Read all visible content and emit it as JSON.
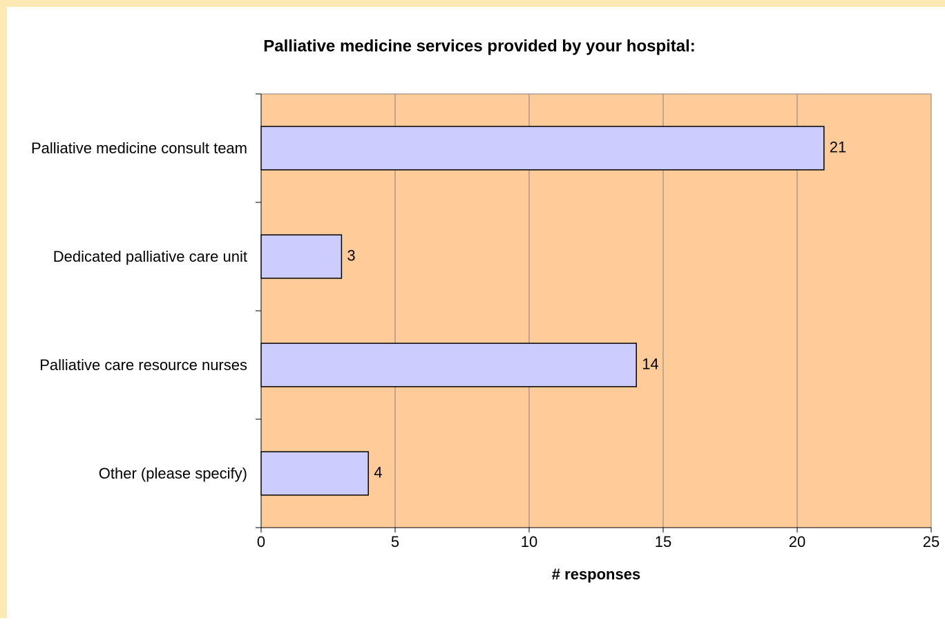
{
  "chart_data": {
    "type": "bar",
    "title": "Palliative medicine services provided by your hospital:",
    "x_label": "# responses",
    "categories": [
      "Palliative medicine consult team",
      "Dedicated palliative care unit",
      "Palliative care resource nurses",
      "Other (please specify)"
    ],
    "values": [
      21,
      3,
      14,
      4
    ],
    "color": "#ccccff",
    "xlim": [
      0,
      25
    ],
    "xticks": [
      0,
      5,
      10,
      15,
      20,
      25
    ],
    "grid": true
  }
}
